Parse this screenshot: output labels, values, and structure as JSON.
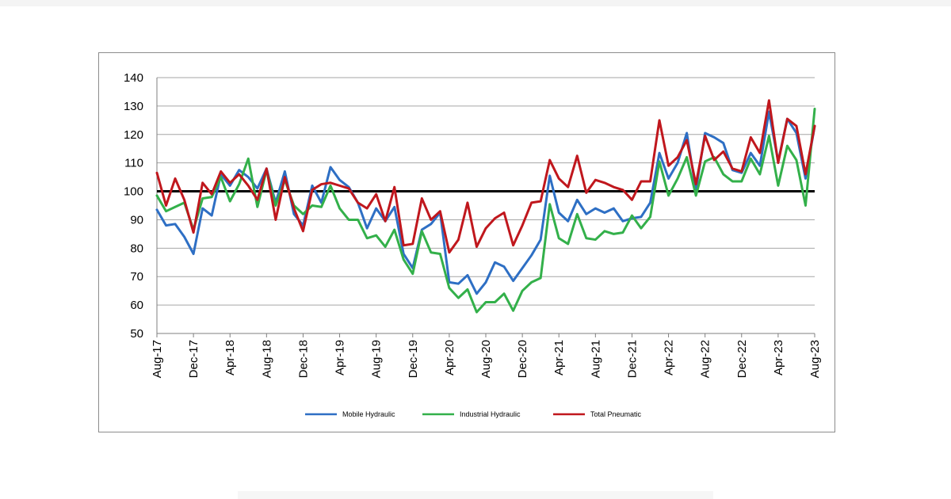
{
  "chart_data": {
    "type": "line",
    "title": "",
    "xlabel": "",
    "ylabel": "",
    "ylim": [
      50,
      140
    ],
    "yticks": [
      50,
      60,
      70,
      80,
      90,
      100,
      110,
      120,
      130,
      140
    ],
    "grid": true,
    "reference_line": 100,
    "legend_position": "bottom",
    "x_tick_labels": [
      "Aug-17",
      "Dec-17",
      "Apr-18",
      "Aug-18",
      "Dec-18",
      "Apr-19",
      "Aug-19",
      "Dec-19",
      "Apr-20",
      "Aug-20",
      "Dec-20",
      "Apr-21",
      "Aug-21",
      "Dec-21",
      "Apr-22",
      "Aug-22",
      "Dec-22",
      "Apr-23",
      "Aug-23"
    ],
    "series": [
      {
        "name": "Mobile Hydraulic",
        "color": "#2e6fc4",
        "values": [
          93.5,
          88,
          88.5,
          84,
          78,
          94,
          91.5,
          106,
          102,
          107.5,
          105,
          101,
          108,
          96,
          107,
          92,
          88,
          102,
          96,
          108.5,
          104,
          101.5,
          96,
          87,
          94,
          89.5,
          94.5,
          78,
          73,
          86.5,
          88.5,
          92.5,
          68,
          67.5,
          70.5,
          64,
          68,
          75,
          73.5,
          68.5,
          73,
          77.5,
          83,
          105.5,
          92.5,
          89.5,
          97,
          92,
          94,
          92.5,
          94,
          89.5,
          90.5,
          91,
          96,
          113.5,
          104.5,
          110,
          120.5,
          100.5,
          120.5,
          119,
          117,
          107.5,
          106.5,
          113.5,
          109,
          128,
          110.5,
          125.5,
          120.5,
          104.5,
          123
        ]
      },
      {
        "name": "Industrial Hydraulic",
        "color": "#33b04a",
        "values": [
          98.5,
          93,
          94.5,
          96,
          86.5,
          97.5,
          98,
          105,
          96.5,
          102.5,
          111.5,
          94.5,
          107.5,
          95,
          104,
          95,
          92,
          95,
          94.5,
          102,
          94,
          90,
          90,
          83.5,
          84.5,
          80.5,
          86.5,
          76,
          71,
          86,
          78.5,
          78,
          66,
          62.5,
          65.5,
          57.5,
          61,
          61,
          64,
          58,
          65,
          68,
          69.5,
          95.5,
          83.5,
          81.5,
          92,
          83.5,
          83,
          86,
          85,
          85.5,
          91.5,
          87,
          91,
          110.5,
          98.5,
          104.5,
          112,
          98.5,
          110.5,
          112,
          106,
          103.5,
          103.5,
          111.5,
          106,
          119.5,
          102,
          116,
          111,
          95,
          129
        ]
      },
      {
        "name": "Total Pneumatic",
        "color": "#c0171d",
        "values": [
          106.5,
          95,
          104.5,
          97,
          85.5,
          103,
          99,
          107,
          103,
          106,
          102,
          97,
          108,
          90,
          105,
          94,
          86,
          100.5,
          102.5,
          103,
          102,
          101,
          96,
          94,
          99,
          89.5,
          101.5,
          81,
          81.5,
          97.5,
          90,
          93,
          78.5,
          83,
          96,
          80.5,
          87,
          90.5,
          92.5,
          81,
          88,
          96,
          96.5,
          111,
          104.5,
          101.5,
          112.5,
          99.5,
          104,
          103,
          101.5,
          100.5,
          97,
          103.5,
          103.5,
          125,
          109,
          112,
          118,
          102.5,
          119.5,
          111,
          114,
          108,
          107,
          119,
          113.5,
          132,
          110,
          125.5,
          123,
          106,
          123
        ]
      }
    ]
  }
}
